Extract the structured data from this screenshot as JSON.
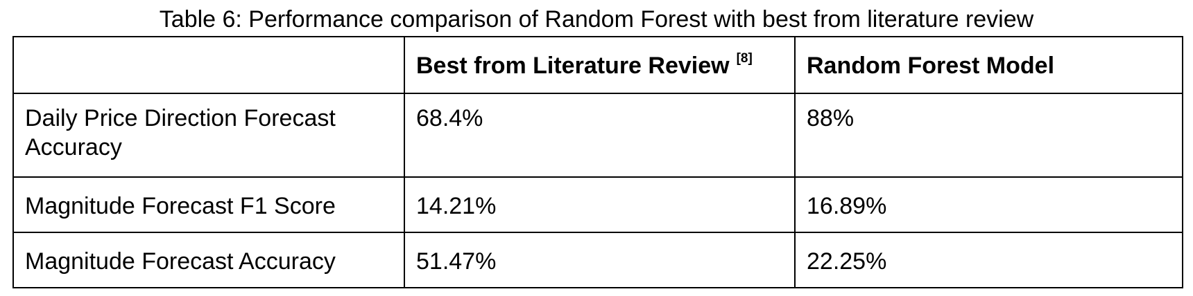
{
  "caption": "Table 6: Performance comparison of Random Forest with best from literature review",
  "table": {
    "headers": [
      "",
      "Best from Literature Review",
      "Random Forest Model"
    ],
    "header_citation": "[8]",
    "rows": [
      [
        "Daily Price Direction Forecast Accuracy",
        "68.4%",
        "88%"
      ],
      [
        "Magnitude Forecast F1 Score",
        "14.21%",
        "16.89%"
      ],
      [
        "Magnitude Forecast Accuracy",
        "51.47%",
        "22.25%"
      ]
    ]
  }
}
